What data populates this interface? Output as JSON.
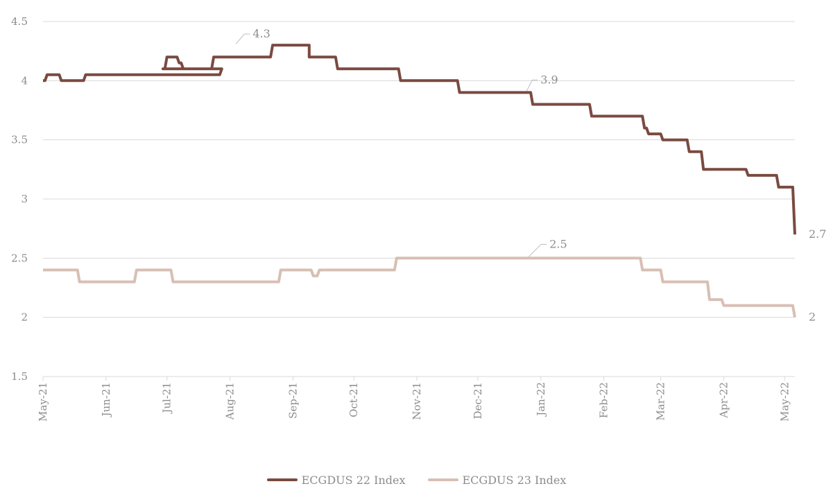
{
  "chart_data": {
    "type": "line",
    "title": "",
    "xlabel": "",
    "ylabel": "",
    "ylim": [
      1.5,
      4.5
    ],
    "yticks": [
      1.5,
      2,
      2.5,
      3,
      3.5,
      4,
      4.5
    ],
    "ytick_labels": [
      "1.5",
      "2",
      "2.5",
      "3",
      "3.5",
      "4",
      "4.5"
    ],
    "xlim": [
      "2021-05-01",
      "2022-05-06"
    ],
    "xticks": [
      "2021-05-01",
      "2021-06-01",
      "2021-07-01",
      "2021-08-01",
      "2021-09-01",
      "2021-10-01",
      "2021-11-01",
      "2021-12-01",
      "2022-01-01",
      "2022-02-01",
      "2022-03-01",
      "2022-04-01",
      "2022-05-01"
    ],
    "xtick_labels": [
      "May-21",
      "Jun-21",
      "Jul-21",
      "Aug-21",
      "Sep-21",
      "Oct-21",
      "Nov-21",
      "Dec-21",
      "Jan-22",
      "Feb-22",
      "Mar-22",
      "Apr-22",
      "May-22"
    ],
    "grid": "horizontal",
    "legend": "bottom",
    "series": [
      {
        "name": "ECGDUS 22 Index",
        "color": "#7a4a40",
        "x": [
          "2021-05-01",
          "2021-05-03",
          "2021-05-09",
          "2021-05-10",
          "2021-05-19",
          "2021-05-22",
          "2021-07-28",
          "2021-06-29",
          "2021-07-01",
          "2021-07-07",
          "2021-07-09",
          "2021-07-24",
          "2021-08-22",
          "2021-09-09",
          "2021-09-09",
          "2021-09-10",
          "2021-09-23",
          "2021-10-09",
          "2021-10-24",
          "2021-10-31",
          "2021-11-22",
          "2021-12-01",
          "2021-12-24",
          "2021-12-28",
          "2022-01-04",
          "2022-01-26",
          "2022-02-16",
          "2022-02-21",
          "2022-02-23",
          "2022-03-02",
          "2022-03-15",
          "2022-03-22",
          "2022-04-13",
          "2022-04-17",
          "2022-04-28",
          "2022-05-06"
        ],
        "y": [
          4.0,
          4.05,
          4.05,
          4.0,
          4.0,
          4.05,
          4.1,
          4.1,
          4.2,
          4.15,
          4.1,
          4.2,
          4.3,
          4.3,
          4.2,
          4.2,
          4.1,
          4.1,
          4.0,
          4.0,
          3.9,
          3.9,
          3.9,
          3.8,
          3.8,
          3.7,
          3.7,
          3.6,
          3.55,
          3.5,
          3.4,
          3.25,
          3.2,
          3.2,
          3.1,
          2.7
        ]
      },
      {
        "name": "ECGDUS 23 Index",
        "color": "#d8bfb4",
        "x": [
          "2021-05-01",
          "2021-05-19",
          "2021-06-16",
          "2021-06-29",
          "2021-07-04",
          "2021-08-20",
          "2021-08-26",
          "2021-09-11",
          "2021-09-14",
          "2021-09-24",
          "2021-10-22",
          "2021-11-01",
          "2022-01-15",
          "2022-02-01",
          "2022-02-20",
          "2022-03-02",
          "2022-03-16",
          "2022-03-25",
          "2022-04-01",
          "2022-05-06"
        ],
        "y": [
          2.4,
          2.3,
          2.4,
          2.4,
          2.3,
          2.3,
          2.4,
          2.35,
          2.4,
          2.4,
          2.5,
          2.5,
          2.5,
          2.5,
          2.4,
          2.3,
          2.3,
          2.15,
          2.1,
          2.0
        ]
      }
    ],
    "annotations": [
      {
        "text": "4.3",
        "series": 0,
        "x": "2021-08-04",
        "y": 4.3
      },
      {
        "text": "3.9",
        "series": 0,
        "x": "2021-12-25",
        "y": 3.9
      },
      {
        "text": "2.7",
        "series": 0,
        "x": "2022-05-06",
        "y": 2.7
      },
      {
        "text": "2.5",
        "series": 1,
        "x": "2021-12-26",
        "y": 2.5
      },
      {
        "text": "2",
        "series": 1,
        "x": "2022-05-06",
        "y": 2.0
      }
    ]
  }
}
